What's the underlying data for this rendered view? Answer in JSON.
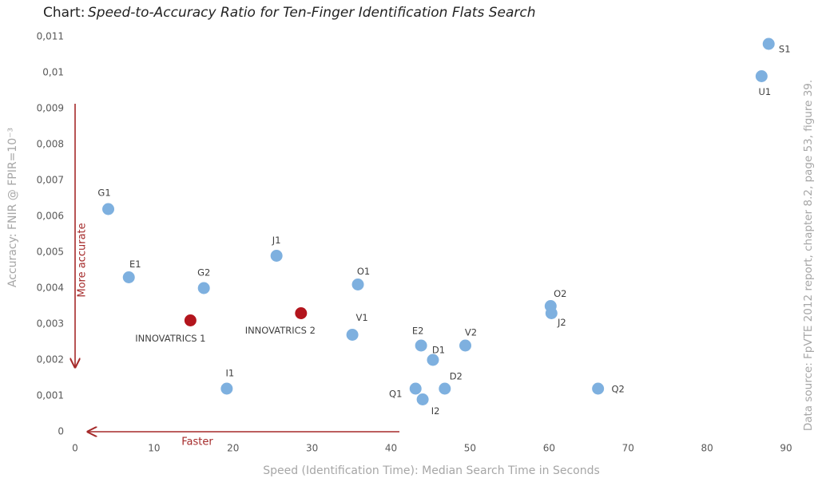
{
  "chart_data": {
    "type": "scatter",
    "title_label": "Chart:",
    "title": "Speed-to-Accuracy Ratio for Ten-Finger Identification Flats Search",
    "xlabel": "Speed (Identification Time): Median Search Time in Seconds",
    "ylabel": "Accuracy: FNIR @ FPIR=10⁻³",
    "annotations": {
      "y_arrow": "More  accurate",
      "x_arrow": "Faster",
      "source": "Data source: FpVTE 2012 report, chapter 8.2, page 53, figure 39."
    },
    "labels": [
      "G1",
      "E1",
      "G2",
      "INNOVATRICS 1",
      "J1",
      "INNOVATRICS 2",
      "I1",
      "V1",
      "O1",
      "E2",
      "D1",
      "V2",
      "D2",
      "Q1",
      "I2",
      "O2",
      "J2",
      "Q2",
      "U1",
      "S1"
    ],
    "x": [
      4.2,
      6.8,
      16.3,
      14.6,
      25.5,
      28.6,
      19.2,
      35.1,
      35.8,
      43.8,
      45.3,
      49.4,
      46.8,
      43.1,
      44.0,
      60.2,
      60.3,
      66.2,
      86.9,
      87.8
    ],
    "values": [
      0.0062,
      0.0043,
      0.004,
      0.0031,
      0.0049,
      0.0033,
      0.0012,
      0.0027,
      0.0041,
      0.0024,
      0.002,
      0.0024,
      0.0012,
      0.0012,
      0.0009,
      0.0035,
      0.0033,
      0.0012,
      0.0099,
      0.0108
    ],
    "colors": [
      "#7eb0df",
      "#7eb0df",
      "#7eb0df",
      "#b3151d",
      "#7eb0df",
      "#b3151d",
      "#7eb0df",
      "#7eb0df",
      "#7eb0df",
      "#7eb0df",
      "#7eb0df",
      "#7eb0df",
      "#7eb0df",
      "#7eb0df",
      "#7eb0df",
      "#7eb0df",
      "#7eb0df",
      "#7eb0df",
      "#7eb0df",
      "#7eb0df"
    ],
    "xlim": [
      0,
      90
    ],
    "xticks": [
      0,
      10,
      20,
      30,
      40,
      50,
      60,
      70,
      80,
      90
    ],
    "ylim": [
      0,
      0.011
    ],
    "yticks": [
      0,
      {
        "value": 0.001,
        "label": "0,001"
      },
      {
        "value": 0.002,
        "label": "0,002"
      },
      {
        "value": 0.003,
        "label": "0,003"
      },
      {
        "value": 0.004,
        "label": "0,004"
      },
      {
        "value": 0.005,
        "label": "0,005"
      },
      {
        "value": 0.006,
        "label": "0,006"
      },
      {
        "value": 0.007,
        "label": "0,007"
      },
      {
        "value": 0.008,
        "label": "0,008"
      },
      {
        "value": 0.009,
        "label": "0,009"
      },
      {
        "value": 0.01,
        "label": "0,01"
      },
      {
        "value": 0.011,
        "label": "0,011"
      }
    ],
    "grid": false
  }
}
